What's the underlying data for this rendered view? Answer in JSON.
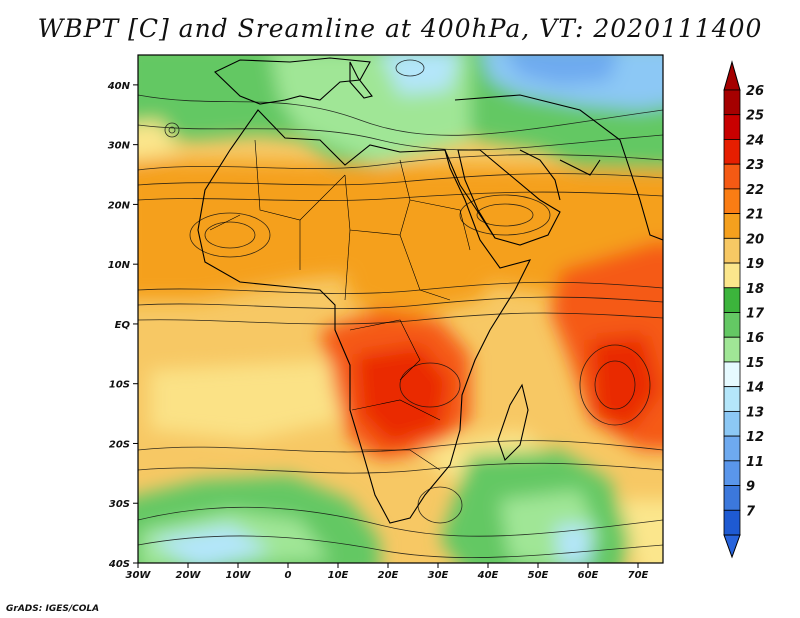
{
  "title": "WBPT [C] and Sreamline at 400hPa, VT: 2020111400",
  "credit": "GrADS: IGES/COLA",
  "map": {
    "lon_range": [
      -30,
      75
    ],
    "lat_range": [
      -40,
      45
    ],
    "lon_ticks": [
      {
        "value": -30,
        "label": "30W"
      },
      {
        "value": -20,
        "label": "20W"
      },
      {
        "value": -10,
        "label": "10W"
      },
      {
        "value": 0,
        "label": "0"
      },
      {
        "value": 10,
        "label": "10E"
      },
      {
        "value": 20,
        "label": "20E"
      },
      {
        "value": 30,
        "label": "30E"
      },
      {
        "value": 40,
        "label": "40E"
      },
      {
        "value": 50,
        "label": "50E"
      },
      {
        "value": 60,
        "label": "60E"
      },
      {
        "value": 70,
        "label": "70E"
      }
    ],
    "lat_ticks": [
      {
        "value": 40,
        "label": "40N"
      },
      {
        "value": 30,
        "label": "30N"
      },
      {
        "value": 20,
        "label": "20N"
      },
      {
        "value": 10,
        "label": "10N"
      },
      {
        "value": 0,
        "label": "EQ"
      },
      {
        "value": -10,
        "label": "10S"
      },
      {
        "value": -20,
        "label": "20S"
      },
      {
        "value": -30,
        "label": "30S"
      },
      {
        "value": -40,
        "label": "40S"
      }
    ],
    "field": "WBPT",
    "units": "C",
    "level": "400hPa",
    "valid_time": "2020111400"
  },
  "colorbar": {
    "levels": [
      {
        "label": "26",
        "color": "#a50000"
      },
      {
        "label": "25",
        "color": "#c80000"
      },
      {
        "label": "24",
        "color": "#e61e00"
      },
      {
        "label": "23",
        "color": "#f55a14"
      },
      {
        "label": "22",
        "color": "#fa7d14"
      },
      {
        "label": "21",
        "color": "#f5a01e"
      },
      {
        "label": "20",
        "color": "#f7c864"
      },
      {
        "label": "19",
        "color": "#fbe68c"
      },
      {
        "label": "18",
        "color": "#3cb43c"
      },
      {
        "label": "17",
        "color": "#64c864"
      },
      {
        "label": "16",
        "color": "#a0e696"
      },
      {
        "label": "15",
        "color": "#e6faff"
      },
      {
        "label": "14",
        "color": "#b4e6fa"
      },
      {
        "label": "13",
        "color": "#8cc8f5"
      },
      {
        "label": "12",
        "color": "#6eaaf0"
      },
      {
        "label": "11",
        "color": "#5a96eb"
      },
      {
        "label": "9",
        "color": "#3c78dc"
      },
      {
        "label": "7",
        "color": "#1e5ad2"
      }
    ],
    "top_arrow_color": "#a50000",
    "bottom_arrow_color": "#2864dc"
  }
}
